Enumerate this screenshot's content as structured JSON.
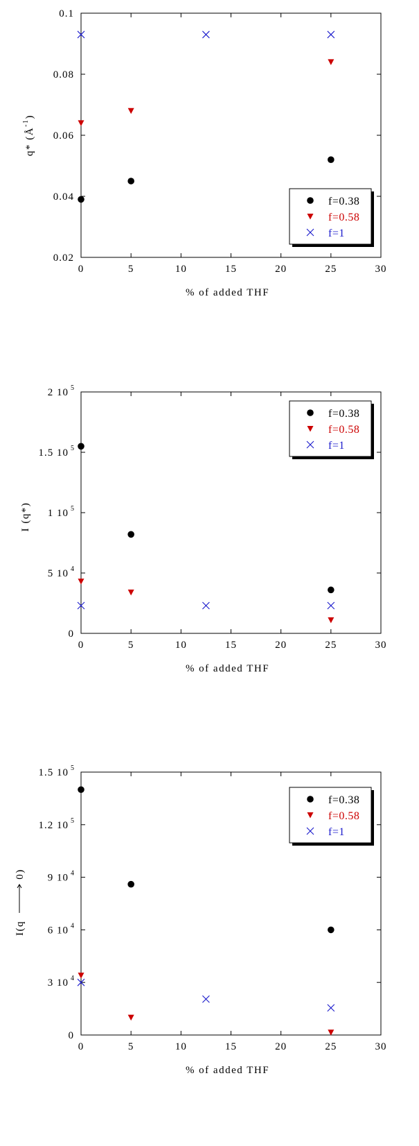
{
  "colors": {
    "f038": "#000000",
    "f058": "#cc0000",
    "f1": "#1a1acc"
  },
  "chart_data": [
    {
      "type": "scatter",
      "xlabel": "% of added THF",
      "ylabel": "q* (Å",
      "ylabel_sup": "-1",
      "ylabel_close": ")",
      "xlim": [
        0,
        30
      ],
      "ylim": [
        0.02,
        0.1
      ],
      "x_ticks": [
        "0",
        "5",
        "10",
        "15",
        "20",
        "25",
        "30"
      ],
      "y_ticks": [
        "0.02",
        "0.04",
        "0.06",
        "0.08",
        "0.1"
      ],
      "legend_position": "bottom-right",
      "series": [
        {
          "name": "f=0.38",
          "marker": "circle",
          "x": [
            0,
            5,
            25
          ],
          "y": [
            0.039,
            0.045,
            0.052
          ]
        },
        {
          "name": "f=0.58",
          "marker": "triangle-down",
          "x": [
            0,
            5,
            25
          ],
          "y": [
            0.064,
            0.068,
            0.084
          ]
        },
        {
          "name": "f=1",
          "marker": "x",
          "x": [
            0,
            12.5,
            25
          ],
          "y": [
            0.093,
            0.093,
            0.093
          ]
        }
      ]
    },
    {
      "type": "scatter",
      "xlabel": "% of added THF",
      "ylabel": "I (q*)",
      "xlim": [
        0,
        30
      ],
      "ylim": [
        0,
        200000
      ],
      "x_ticks": [
        "0",
        "5",
        "10",
        "15",
        "20",
        "25",
        "30"
      ],
      "y_ticks": [
        {
          "mant": "0",
          "exp": ""
        },
        {
          "mant": "5 10",
          "exp": "4"
        },
        {
          "mant": "1 10",
          "exp": "5"
        },
        {
          "mant": "1.5 10",
          "exp": "5"
        },
        {
          "mant": "2 10",
          "exp": "5"
        }
      ],
      "legend_position": "top-right",
      "series": [
        {
          "name": "f=0.38",
          "marker": "circle",
          "x": [
            0,
            5,
            25
          ],
          "y": [
            155000,
            82000,
            36000
          ]
        },
        {
          "name": "f=0.58",
          "marker": "triangle-down",
          "x": [
            0,
            5,
            25
          ],
          "y": [
            43000,
            34000,
            11000
          ]
        },
        {
          "name": "f=1",
          "marker": "x",
          "x": [
            0,
            12.5,
            25
          ],
          "y": [
            23000,
            23000,
            23000
          ]
        }
      ]
    },
    {
      "type": "scatter",
      "xlabel": "% of added THF",
      "ylabel_parts": [
        "I(q",
        "0)"
      ],
      "xlim": [
        0,
        30
      ],
      "ylim": [
        0,
        150000
      ],
      "x_ticks": [
        "0",
        "5",
        "10",
        "15",
        "20",
        "25",
        "30"
      ],
      "y_ticks": [
        {
          "mant": "0",
          "exp": ""
        },
        {
          "mant": "3 10",
          "exp": "4"
        },
        {
          "mant": "6 10",
          "exp": "4"
        },
        {
          "mant": "9 10",
          "exp": "4"
        },
        {
          "mant": "1.2 10",
          "exp": "5"
        },
        {
          "mant": "1.5 10",
          "exp": "5"
        }
      ],
      "legend_position": "top-right",
      "series": [
        {
          "name": "f=0.38",
          "marker": "circle",
          "x": [
            0,
            5,
            25
          ],
          "y": [
            140000,
            86000,
            60000
          ]
        },
        {
          "name": "f=0.58",
          "marker": "triangle-down",
          "x": [
            0,
            5,
            25
          ],
          "y": [
            34000,
            10000,
            1500
          ]
        },
        {
          "name": "f=1",
          "marker": "x",
          "x": [
            0,
            12.5,
            25
          ],
          "y": [
            30000,
            20500,
            15500
          ]
        }
      ]
    }
  ]
}
